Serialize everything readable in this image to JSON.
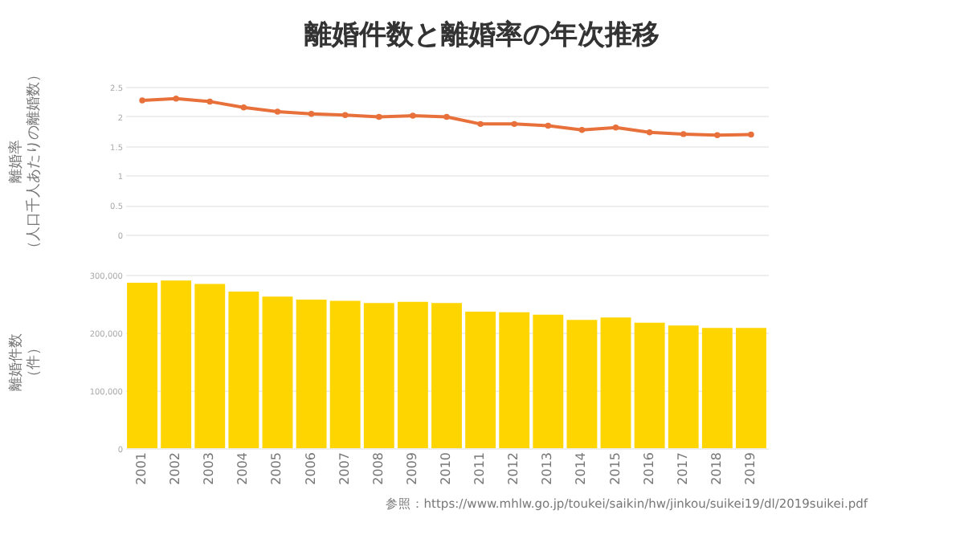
{
  "chart_data": [
    {
      "type": "line",
      "title": "離婚件数と離婚率の年次推移",
      "ylabel": "離婚率（人口千人あたりの離婚数）",
      "categories": [
        "2001",
        "2002",
        "2003",
        "2004",
        "2005",
        "2006",
        "2007",
        "2008",
        "2009",
        "2010",
        "2011",
        "2012",
        "2013",
        "2014",
        "2015",
        "2016",
        "2017",
        "2018",
        "2019"
      ],
      "series": [
        {
          "color": "#e8703a",
          "values": [
            2.27,
            2.3,
            2.25,
            2.15,
            2.08,
            2.04,
            2.02,
            1.99,
            2.01,
            1.99,
            1.87,
            1.87,
            1.84,
            1.77,
            1.81,
            1.73,
            1.7,
            1.68,
            1.69
          ]
        }
      ],
      "ylim": [
        0,
        2.5
      ],
      "yticks": [
        0,
        0.5,
        1,
        1.5,
        2,
        2.5
      ],
      "grid": "y",
      "marker": "circle",
      "line_style": "solid",
      "tick_labels": "y"
    },
    {
      "type": "bar",
      "ylabel": "離婚件数（件）",
      "categories": [
        "2001",
        "2002",
        "2003",
        "2004",
        "2005",
        "2006",
        "2007",
        "2008",
        "2009",
        "2010",
        "2011",
        "2012",
        "2013",
        "2014",
        "2015",
        "2016",
        "2017",
        "2018",
        "2019"
      ],
      "series": [
        {
          "color": "#ffd500",
          "values": [
            286000,
            290000,
            284000,
            271000,
            262000,
            257000,
            255000,
            251000,
            253000,
            251000,
            236000,
            235000,
            231000,
            222000,
            226000,
            217000,
            212000,
            208000,
            208000
          ]
        }
      ],
      "ylim": [
        0,
        300000
      ],
      "yticks": [
        0,
        {
          "value": 100000,
          "label": "100,000"
        },
        {
          "value": 200000,
          "label": "200,000"
        },
        {
          "value": 300000,
          "label": "300,000"
        }
      ],
      "grid": "y",
      "annotations": [
        "参照：https://www.mhlw.go.jp/toukei/saikin/hw/jinkou/suikei19/dl/2019suikei.pdf"
      ]
    }
  ]
}
